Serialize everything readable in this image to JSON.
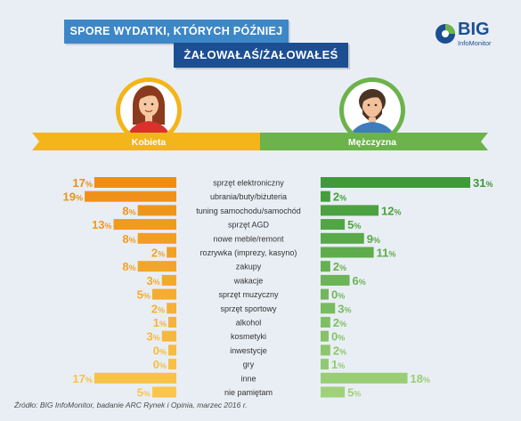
{
  "header": {
    "title_line1": "SPORE WYDATKI, KTÓRYCH PÓŹNIEJ",
    "title_line2": "ŻAŁOWAŁAŚ/ŻAŁOWAŁEŚ"
  },
  "logo": {
    "brand": "BIG",
    "sub": "InfoMonitor",
    "colors": [
      "#1c4e92",
      "#6bb34a"
    ]
  },
  "source": "Źródło: BIG InfoMonitor, badanie ARC Rynek i Opinia, marzec 2016 r.",
  "colors": {
    "female_dark": "#ef8e15",
    "female_light": "#f9c64b",
    "male_dark": "#3f9a37",
    "male_light": "#9fd17a",
    "female_ribbon": "#f3b51a",
    "male_ribbon": "#6bb34a"
  },
  "icons": {
    "female": "woman-avatar-icon",
    "male": "man-avatar-icon"
  },
  "chart_data": {
    "type": "bar",
    "categories": [
      "sprzęt elektroniczny",
      "ubrania/buty/biżuteria",
      "tuning samochodu/samochód",
      "sprzęt AGD",
      "nowe meble/remont",
      "rozrywka (imprezy, kasyno)",
      "zakupy",
      "wakacje",
      "sprzęt muzyczny",
      "sprzęt sportowy",
      "alkohol",
      "kosmetyki",
      "inwestycje",
      "gry",
      "inne",
      "nie pamiętam"
    ],
    "series": [
      {
        "name": "Kobieta",
        "values": [
          17,
          19,
          8,
          13,
          8,
          2,
          8,
          3,
          5,
          2,
          1,
          3,
          0,
          0,
          17,
          5
        ]
      },
      {
        "name": "Mężczyzna",
        "values": [
          31,
          2,
          12,
          5,
          9,
          11,
          2,
          6,
          0,
          3,
          2,
          0,
          2,
          1,
          18,
          5
        ]
      }
    ],
    "value_suffix": "%",
    "layout": "butterfly",
    "xlim": [
      0,
      31
    ]
  }
}
